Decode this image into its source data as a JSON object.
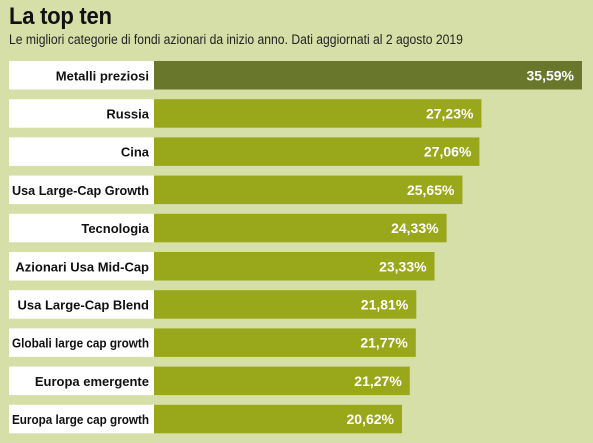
{
  "chart_data": {
    "type": "bar",
    "orientation": "horizontal",
    "title": "La top ten",
    "subtitle": "Le migliori categorie di fondi azionari da inizio anno. Dati aggiornati al 2 agosto 2019",
    "categories": [
      "Metalli preziosi",
      "Russia",
      "Cina",
      "Usa Large-Cap Growth",
      "Tecnologia",
      "Azionari Usa Mid-Cap",
      "Usa Large-Cap Blend",
      "Globali large cap growth",
      "Europa emergente",
      "Europa large cap growth"
    ],
    "values": [
      35.59,
      27.23,
      27.06,
      25.65,
      24.33,
      23.33,
      21.81,
      21.77,
      21.27,
      20.62
    ],
    "value_labels": [
      "35,59%",
      "27,23%",
      "27,06%",
      "25,65%",
      "24,33%",
      "23,33%",
      "21,81%",
      "21,77%",
      "21,27%",
      "20,62%"
    ],
    "xlim": [
      0,
      35.59
    ],
    "grid": false,
    "legend": "none",
    "colors": {
      "background": "#d7dfa9",
      "label_box": "#ffffff",
      "bar": "#99a81a",
      "bar_highlight": "#68772b",
      "value_text": "#ffffff"
    }
  }
}
